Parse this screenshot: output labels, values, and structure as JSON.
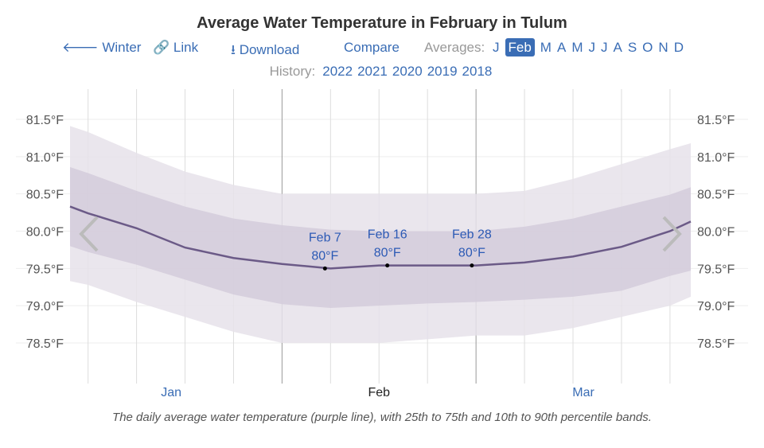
{
  "title": "Average Water Temperature in February in Tulum",
  "nav": {
    "back": "Winter",
    "link": "Link",
    "download": "Download",
    "compare": "Compare",
    "averages_label": "Averages:",
    "months": [
      "J",
      "Feb",
      "M",
      "A",
      "M",
      "J",
      "J",
      "A",
      "S",
      "O",
      "N",
      "D"
    ],
    "selected_month": "Feb"
  },
  "history": {
    "label": "History:",
    "years": [
      "2022",
      "2021",
      "2020",
      "2019",
      "2018"
    ]
  },
  "caption": "The daily average water temperature (purple line), with 25th to 75th and 10th to 90th percentile bands.",
  "colors": {
    "line": "#6b5a87",
    "band_outer": "#e6e2ea",
    "band_inner": "#d3cbdb",
    "link": "#3a6db5"
  },
  "chart_data": {
    "type": "area",
    "title": "Average Water Temperature in February in Tulum",
    "ylabel": "",
    "xlabel": "",
    "ylim": [
      78.5,
      81.5
    ],
    "xlim": [
      0.4,
      90
    ],
    "x_unit": "days since Jan 1",
    "yticks": [
      "78.5°F",
      "79.0°F",
      "79.5°F",
      "80.0°F",
      "80.5°F",
      "81.0°F",
      "81.5°F"
    ],
    "ytick_values": [
      78.5,
      79.0,
      79.5,
      80.0,
      80.5,
      81.0,
      81.5
    ],
    "month_labels": [
      {
        "label": "Jan",
        "x": 15
      },
      {
        "label": "Feb",
        "x": 45
      },
      {
        "label": "Mar",
        "x": 74.5
      }
    ],
    "x": [
      0.4,
      3,
      10,
      17,
      24,
      31,
      38,
      45,
      52,
      59,
      66,
      73,
      80,
      87,
      90
    ],
    "series": [
      {
        "name": "10th percentile",
        "values": [
          79.33,
          79.28,
          79.05,
          78.85,
          78.65,
          78.5,
          78.5,
          78.5,
          78.55,
          78.6,
          78.6,
          78.7,
          78.85,
          79.0,
          79.12
        ]
      },
      {
        "name": "25th percentile",
        "values": [
          79.8,
          79.72,
          79.55,
          79.35,
          79.15,
          79.02,
          78.97,
          79.0,
          79.03,
          79.05,
          79.08,
          79.12,
          79.2,
          79.4,
          79.47
        ]
      },
      {
        "name": "Average",
        "values": [
          80.33,
          80.24,
          80.04,
          79.78,
          79.64,
          79.56,
          79.5,
          79.54,
          79.54,
          79.54,
          79.58,
          79.66,
          79.79,
          80.0,
          80.13
        ]
      },
      {
        "name": "75th percentile",
        "values": [
          80.86,
          80.78,
          80.54,
          80.33,
          80.17,
          80.08,
          80.02,
          80.0,
          80.0,
          80.0,
          80.06,
          80.17,
          80.33,
          80.49,
          80.59
        ]
      },
      {
        "name": "90th percentile",
        "values": [
          81.41,
          81.33,
          81.05,
          80.8,
          80.62,
          80.5,
          80.5,
          80.5,
          80.5,
          80.5,
          80.54,
          80.7,
          80.9,
          81.1,
          81.18
        ]
      }
    ],
    "annotations": [
      {
        "label": "Feb 7",
        "value": "80°F",
        "x": 37.2,
        "y": 79.5
      },
      {
        "label": "Feb 16",
        "value": "80°F",
        "x": 46.2,
        "y": 79.54
      },
      {
        "label": "Feb 28",
        "value": "80°F",
        "x": 58.4,
        "y": 79.54
      }
    ],
    "grid": true
  }
}
